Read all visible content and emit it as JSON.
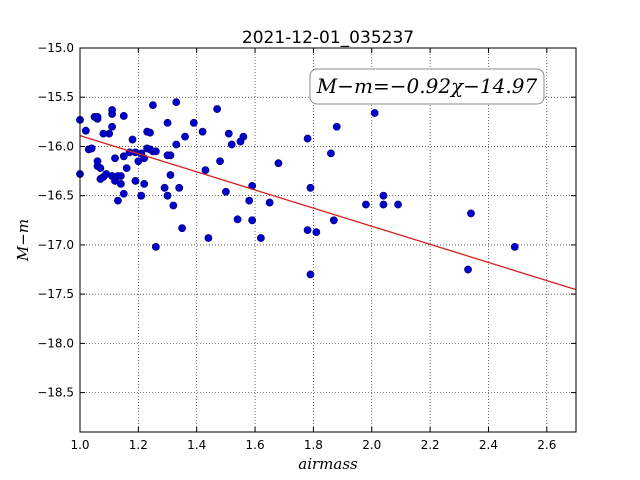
{
  "chart_data": {
    "type": "scatter",
    "title": "2021-12-01_035237",
    "xlabel": "airmass",
    "ylabel": "M−m",
    "xlim": [
      1.0,
      2.7
    ],
    "ylim": [
      -15.0,
      -18.9
    ],
    "y_inverted": true,
    "grid": true,
    "grid_style": "dotted",
    "xticks": [
      "1.0",
      "1.2",
      "1.4",
      "1.6",
      "1.8",
      "2.0",
      "2.2",
      "2.4",
      "2.6"
    ],
    "yticks": [
      "−15.0",
      "−15.5",
      "−16.0",
      "−16.5",
      "−17.0",
      "−17.5",
      "−18.0",
      "−18.5"
    ],
    "annotation": "M−m=−0.92χ−14.97",
    "annotation_placement": "top-right",
    "fit_line": {
      "slope": -0.92,
      "intercept": -14.97,
      "x_range": [
        1.0,
        2.7
      ],
      "color": "#d62020"
    },
    "series": [
      {
        "marker_color": "#0000c8",
        "points": [
          [
            1.0,
            -15.73
          ],
          [
            1.0,
            -16.28
          ],
          [
            1.02,
            -15.84
          ],
          [
            1.03,
            -16.03
          ],
          [
            1.04,
            -16.02
          ],
          [
            1.05,
            -15.7
          ],
          [
            1.06,
            -15.72
          ],
          [
            1.06,
            -15.7
          ],
          [
            1.06,
            -16.2
          ],
          [
            1.06,
            -16.15
          ],
          [
            1.07,
            -16.22
          ],
          [
            1.07,
            -16.33
          ],
          [
            1.08,
            -15.87
          ],
          [
            1.08,
            -16.31
          ],
          [
            1.09,
            -16.28
          ],
          [
            1.1,
            -15.87
          ],
          [
            1.11,
            -15.8
          ],
          [
            1.11,
            -15.67
          ],
          [
            1.11,
            -15.63
          ],
          [
            1.11,
            -16.3
          ],
          [
            1.12,
            -16.35
          ],
          [
            1.12,
            -16.12
          ],
          [
            1.13,
            -16.3
          ],
          [
            1.13,
            -16.55
          ],
          [
            1.14,
            -16.38
          ],
          [
            1.14,
            -16.3
          ],
          [
            1.15,
            -15.69
          ],
          [
            1.15,
            -16.1
          ],
          [
            1.15,
            -16.48
          ],
          [
            1.16,
            -16.22
          ],
          [
            1.17,
            -16.06
          ],
          [
            1.18,
            -15.93
          ],
          [
            1.19,
            -16.06
          ],
          [
            1.19,
            -16.35
          ],
          [
            1.2,
            -16.15
          ],
          [
            1.21,
            -16.07
          ],
          [
            1.21,
            -16.5
          ],
          [
            1.22,
            -16.12
          ],
          [
            1.22,
            -16.38
          ],
          [
            1.23,
            -15.85
          ],
          [
            1.23,
            -16.02
          ],
          [
            1.24,
            -15.86
          ],
          [
            1.24,
            -16.03
          ],
          [
            1.25,
            -15.58
          ],
          [
            1.25,
            -16.05
          ],
          [
            1.26,
            -16.05
          ],
          [
            1.26,
            -17.02
          ],
          [
            1.29,
            -16.42
          ],
          [
            1.3,
            -15.76
          ],
          [
            1.3,
            -16.09
          ],
          [
            1.3,
            -16.5
          ],
          [
            1.31,
            -16.09
          ],
          [
            1.31,
            -16.29
          ],
          [
            1.32,
            -16.6
          ],
          [
            1.33,
            -15.55
          ],
          [
            1.33,
            -15.98
          ],
          [
            1.34,
            -16.42
          ],
          [
            1.35,
            -16.83
          ],
          [
            1.36,
            -15.9
          ],
          [
            1.39,
            -15.76
          ],
          [
            1.42,
            -15.85
          ],
          [
            1.43,
            -16.24
          ],
          [
            1.44,
            -16.93
          ],
          [
            1.47,
            -15.62
          ],
          [
            1.48,
            -16.15
          ],
          [
            1.5,
            -16.46
          ],
          [
            1.51,
            -15.87
          ],
          [
            1.52,
            -15.98
          ],
          [
            1.54,
            -16.74
          ],
          [
            1.55,
            -15.95
          ],
          [
            1.56,
            -15.9
          ],
          [
            1.58,
            -16.55
          ],
          [
            1.59,
            -16.4
          ],
          [
            1.59,
            -16.75
          ],
          [
            1.62,
            -16.93
          ],
          [
            1.65,
            -16.57
          ],
          [
            1.68,
            -16.17
          ],
          [
            1.78,
            -15.92
          ],
          [
            1.78,
            -16.85
          ],
          [
            1.79,
            -16.42
          ],
          [
            1.79,
            -17.3
          ],
          [
            1.81,
            -16.87
          ],
          [
            1.86,
            -16.07
          ],
          [
            1.87,
            -16.75
          ],
          [
            1.88,
            -15.8
          ],
          [
            1.98,
            -16.59
          ],
          [
            2.01,
            -15.66
          ],
          [
            2.04,
            -16.5
          ],
          [
            2.04,
            -16.59
          ],
          [
            2.09,
            -16.59
          ],
          [
            2.33,
            -17.25
          ],
          [
            2.34,
            -16.68
          ],
          [
            2.49,
            -17.02
          ]
        ]
      }
    ]
  }
}
